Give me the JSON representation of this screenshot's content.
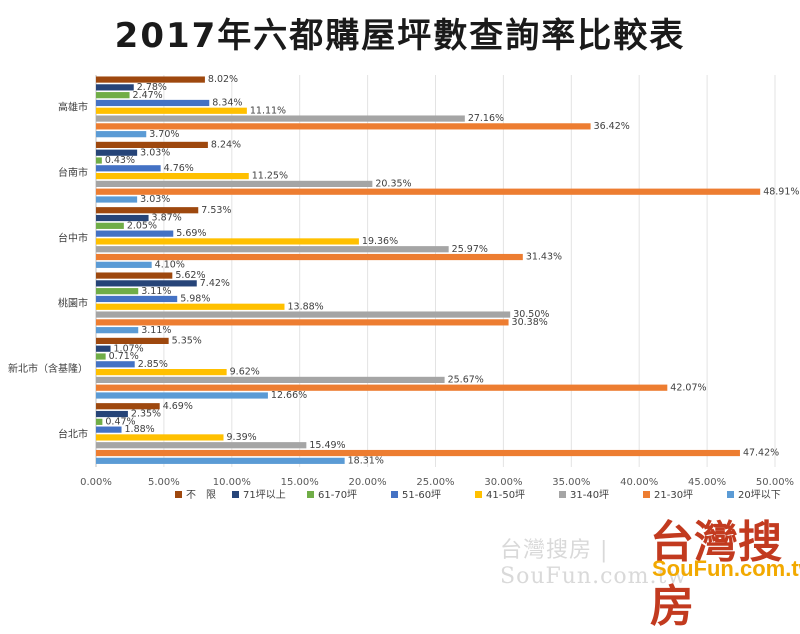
{
  "title": "2017年六都購屋坪數查詢率比較表",
  "chart_data": {
    "type": "bar",
    "orientation": "horizontal",
    "title": "2017年六都購屋坪數查詢率比較表",
    "categories": [
      "台北市",
      "新北市（含基隆）",
      "桃園市",
      "台中市",
      "台南市",
      "高雄市"
    ],
    "series": [
      {
        "name": "不　限",
        "color": "#9e480e",
        "values": [
          4.69,
          5.35,
          5.62,
          7.53,
          8.24,
          8.02
        ]
      },
      {
        "name": "71坪以上",
        "color": "#264478",
        "values": [
          2.35,
          1.07,
          7.42,
          3.87,
          3.03,
          2.78
        ]
      },
      {
        "name": "61-70坪",
        "color": "#70ad47",
        "values": [
          0.47,
          0.71,
          3.11,
          2.05,
          0.43,
          2.47
        ]
      },
      {
        "name": "51-60坪",
        "color": "#4472c4",
        "values": [
          1.88,
          2.85,
          5.98,
          5.69,
          4.76,
          8.34
        ]
      },
      {
        "name": "41-50坪",
        "color": "#ffc000",
        "values": [
          9.39,
          9.62,
          13.88,
          19.36,
          11.25,
          11.11
        ]
      },
      {
        "name": "31-40坪",
        "color": "#a5a5a5",
        "values": [
          15.49,
          25.67,
          30.5,
          25.97,
          20.35,
          27.16
        ]
      },
      {
        "name": "21-30坪",
        "color": "#ed7d31",
        "values": [
          47.42,
          42.07,
          30.38,
          31.43,
          48.91,
          36.42
        ]
      },
      {
        "name": "20坪以下",
        "color": "#5b9bd5",
        "values": [
          18.31,
          12.66,
          3.11,
          4.1,
          3.03,
          3.7
        ]
      }
    ],
    "xlim": [
      0,
      50
    ],
    "xticks": [
      "0.00%",
      "5.00%",
      "10.00%",
      "15.00%",
      "20.00%",
      "25.00%",
      "30.00%",
      "35.00%",
      "40.00%",
      "45.00%",
      "50.00%"
    ],
    "grid": true,
    "legend_position": "bottom"
  },
  "watermark": {
    "text": "台灣搜房 | SouFun.com.tw",
    "logo_chinese": "台灣搜房",
    "logo_english": "SouFun.com.tw"
  }
}
